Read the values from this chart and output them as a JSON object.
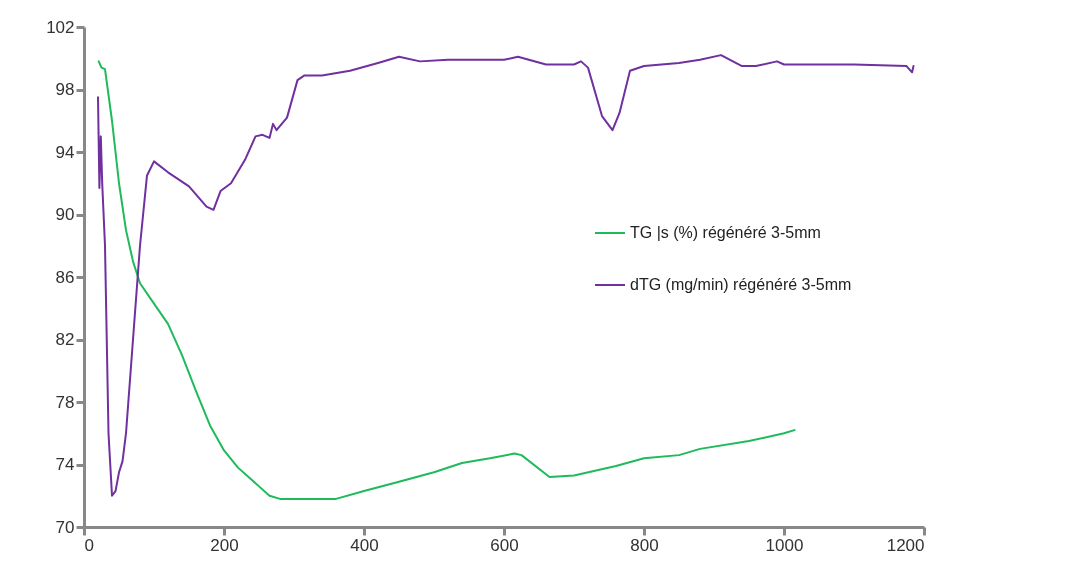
{
  "chart_data": {
    "type": "line",
    "xlim": [
      0,
      1200
    ],
    "xticks": [
      0,
      200,
      400,
      600,
      800,
      1000,
      1200
    ],
    "ylim": [
      70,
      102
    ],
    "yticks": [
      70,
      74,
      78,
      82,
      86,
      90,
      94,
      98,
      102
    ],
    "grid": false,
    "legend": "right",
    "marker": "none",
    "line_style": "solid",
    "series": [
      {
        "name": "TG |s (%) régénéré 3-5mm",
        "color": "#1fba5b",
        "x": [
          21,
          25,
          30,
          40,
          50,
          60,
          70,
          80,
          100,
          120,
          140,
          160,
          180,
          200,
          220,
          250,
          265,
          280,
          340,
          360,
          400,
          450,
          500,
          540,
          580,
          615,
          625,
          665,
          700,
          760,
          800,
          850,
          880,
          950,
          1000,
          1015
        ],
        "values": [
          99.8,
          99.4,
          99.3,
          96,
          92,
          89,
          87,
          85.6,
          84.3,
          83,
          81,
          78.7,
          76.5,
          74.9,
          73.8,
          72.6,
          72,
          71.8,
          71.8,
          71.8,
          72.3,
          72.9,
          73.5,
          74.1,
          74.4,
          74.7,
          74.6,
          73.2,
          73.3,
          73.9,
          74.4,
          74.6,
          75,
          75.5,
          76,
          76.2
        ]
      },
      {
        "name": "dTG (mg/min) régénéré  3-5mm",
        "color": "#7030a0",
        "x": [
          20,
          22,
          24,
          26,
          30,
          35,
          40,
          45,
          50,
          55,
          60,
          70,
          80,
          90,
          100,
          120,
          150,
          175,
          185,
          195,
          210,
          230,
          245,
          255,
          265,
          270,
          275,
          290,
          305,
          315,
          340,
          380,
          420,
          450,
          480,
          520,
          600,
          620,
          660,
          700,
          710,
          720,
          740,
          755,
          765,
          780,
          800,
          850,
          880,
          910,
          940,
          960,
          990,
          1000,
          1100,
          1175,
          1183,
          1185
        ],
        "values": [
          97.5,
          91.7,
          95,
          92,
          88,
          76,
          72,
          72.3,
          73.5,
          74.2,
          76,
          82,
          88,
          92.5,
          93.4,
          92.7,
          91.8,
          90.5,
          90.3,
          91.5,
          92,
          93.5,
          95,
          95.1,
          94.9,
          95.8,
          95.4,
          96.2,
          98.6,
          98.9,
          98.9,
          99.2,
          99.7,
          100.1,
          99.8,
          99.9,
          99.9,
          100.1,
          99.6,
          99.6,
          99.8,
          99.4,
          96.3,
          95.4,
          96.5,
          99.2,
          99.5,
          99.7,
          99.9,
          100.2,
          99.5,
          99.5,
          99.8,
          99.6,
          99.6,
          99.5,
          99.1,
          99.5
        ]
      }
    ]
  }
}
